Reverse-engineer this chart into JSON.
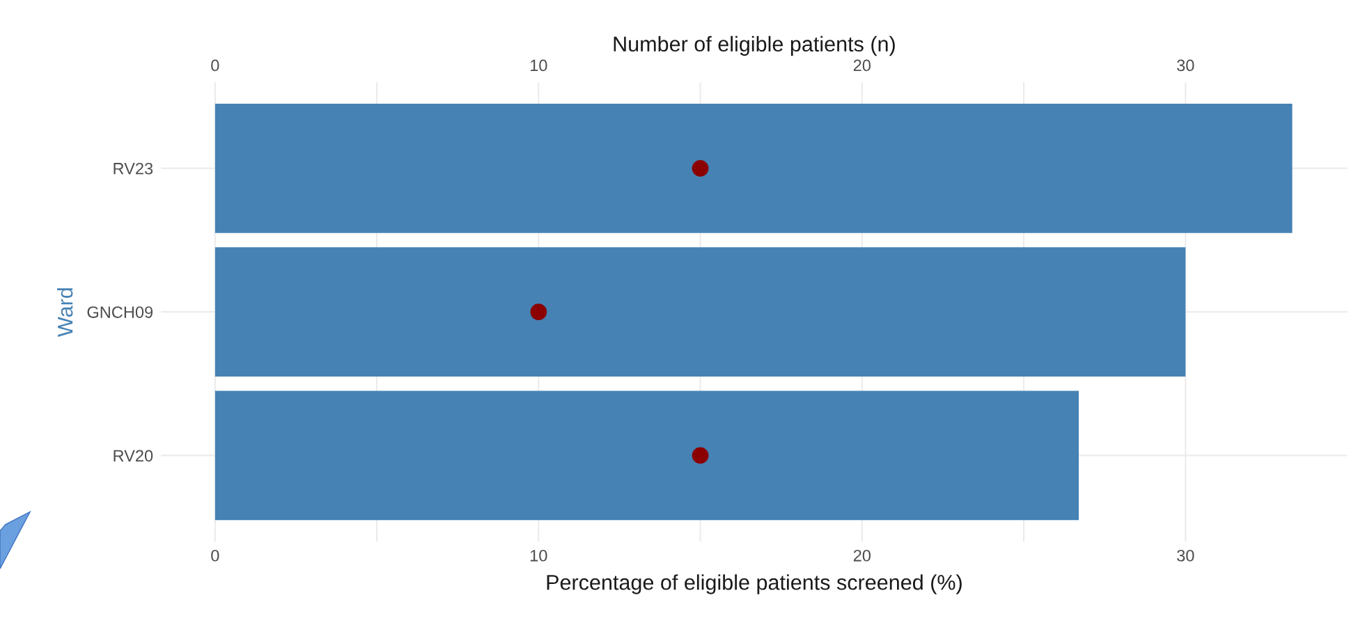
{
  "chart_data": {
    "type": "bar",
    "orientation": "horizontal",
    "categories": [
      "RV23",
      "GNCH09",
      "RV20"
    ],
    "xlabel": "Percentage of eligible patients screened (%)",
    "ylabel": "Ward",
    "x2label": "Number of eligible patients (n)",
    "series": [
      {
        "color": "#4682b4",
        "values": [
          33.3,
          30,
          26.7
        ]
      },
      {
        "type": "scatter",
        "axis": "x2",
        "color": "#8b0000",
        "values": [
          15,
          10,
          15
        ]
      }
    ],
    "xlim": [
      -1.67,
      35
    ],
    "xticks": [
      0,
      {
        "value": 5,
        "label": null
      },
      10,
      {
        "value": 15,
        "label": null
      },
      20,
      {
        "value": 25,
        "label": null
      },
      30
    ],
    "x2lim": [
      -1.67,
      35
    ],
    "x2ticks": [
      0,
      10,
      20,
      30
    ],
    "grid": true,
    "marker": "circle"
  }
}
